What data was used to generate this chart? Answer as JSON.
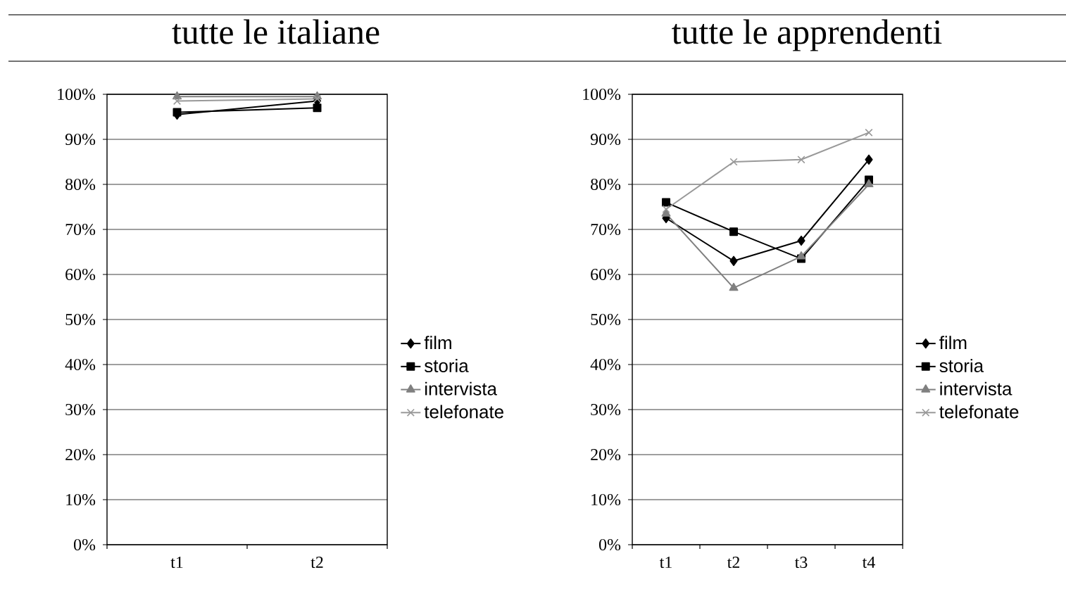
{
  "chart_data": [
    {
      "type": "line",
      "title": "tutte le italiane",
      "categories": [
        "t1",
        "t2"
      ],
      "series": [
        {
          "name": "film",
          "color": "#000000",
          "marker": "diamond",
          "values": [
            95.5,
            98.5
          ]
        },
        {
          "name": "storia",
          "color": "#000000",
          "marker": "square",
          "values": [
            96,
            97
          ]
        },
        {
          "name": "intervista",
          "color": "#808080",
          "marker": "triangle",
          "values": [
            99.5,
            99.5
          ]
        },
        {
          "name": "telefonate",
          "color": "#999999",
          "marker": "cross",
          "values": [
            98.5,
            99
          ]
        }
      ],
      "ylim": [
        0,
        100
      ],
      "yticks": [
        {
          "value": 0,
          "label": "0%"
        },
        {
          "value": 10,
          "label": "10%"
        },
        {
          "value": 20,
          "label": "20%"
        },
        {
          "value": 30,
          "label": "30%"
        },
        {
          "value": 40,
          "label": "40%"
        },
        {
          "value": 50,
          "label": "50%"
        },
        {
          "value": 60,
          "label": "60%"
        },
        {
          "value": 70,
          "label": "70%"
        },
        {
          "value": 80,
          "label": "80%"
        },
        {
          "value": 90,
          "label": "90%"
        },
        {
          "value": 100,
          "label": "100%"
        }
      ],
      "grid": "y",
      "legend": "right"
    },
    {
      "type": "line",
      "title": "tutte le apprendenti",
      "categories": [
        "t1",
        "t2",
        "t3",
        "t4"
      ],
      "series": [
        {
          "name": "film",
          "color": "#000000",
          "marker": "diamond",
          "values": [
            72.5,
            63,
            67.5,
            85.5
          ]
        },
        {
          "name": "storia",
          "color": "#000000",
          "marker": "square",
          "values": [
            76,
            69.5,
            63.5,
            81
          ]
        },
        {
          "name": "intervista",
          "color": "#808080",
          "marker": "triangle",
          "values": [
            73.5,
            57,
            64,
            80
          ]
        },
        {
          "name": "telefonate",
          "color": "#999999",
          "marker": "cross",
          "values": [
            74.5,
            85,
            85.5,
            91.5
          ]
        }
      ],
      "ylim": [
        0,
        100
      ],
      "yticks": [
        {
          "value": 0,
          "label": "0%"
        },
        {
          "value": 10,
          "label": "10%"
        },
        {
          "value": 20,
          "label": "20%"
        },
        {
          "value": 30,
          "label": "30%"
        },
        {
          "value": 40,
          "label": "40%"
        },
        {
          "value": 50,
          "label": "50%"
        },
        {
          "value": 60,
          "label": "60%"
        },
        {
          "value": 70,
          "label": "70%"
        },
        {
          "value": 80,
          "label": "80%"
        },
        {
          "value": 90,
          "label": "90%"
        },
        {
          "value": 100,
          "label": "100%"
        }
      ],
      "grid": "y",
      "legend": "right"
    }
  ]
}
